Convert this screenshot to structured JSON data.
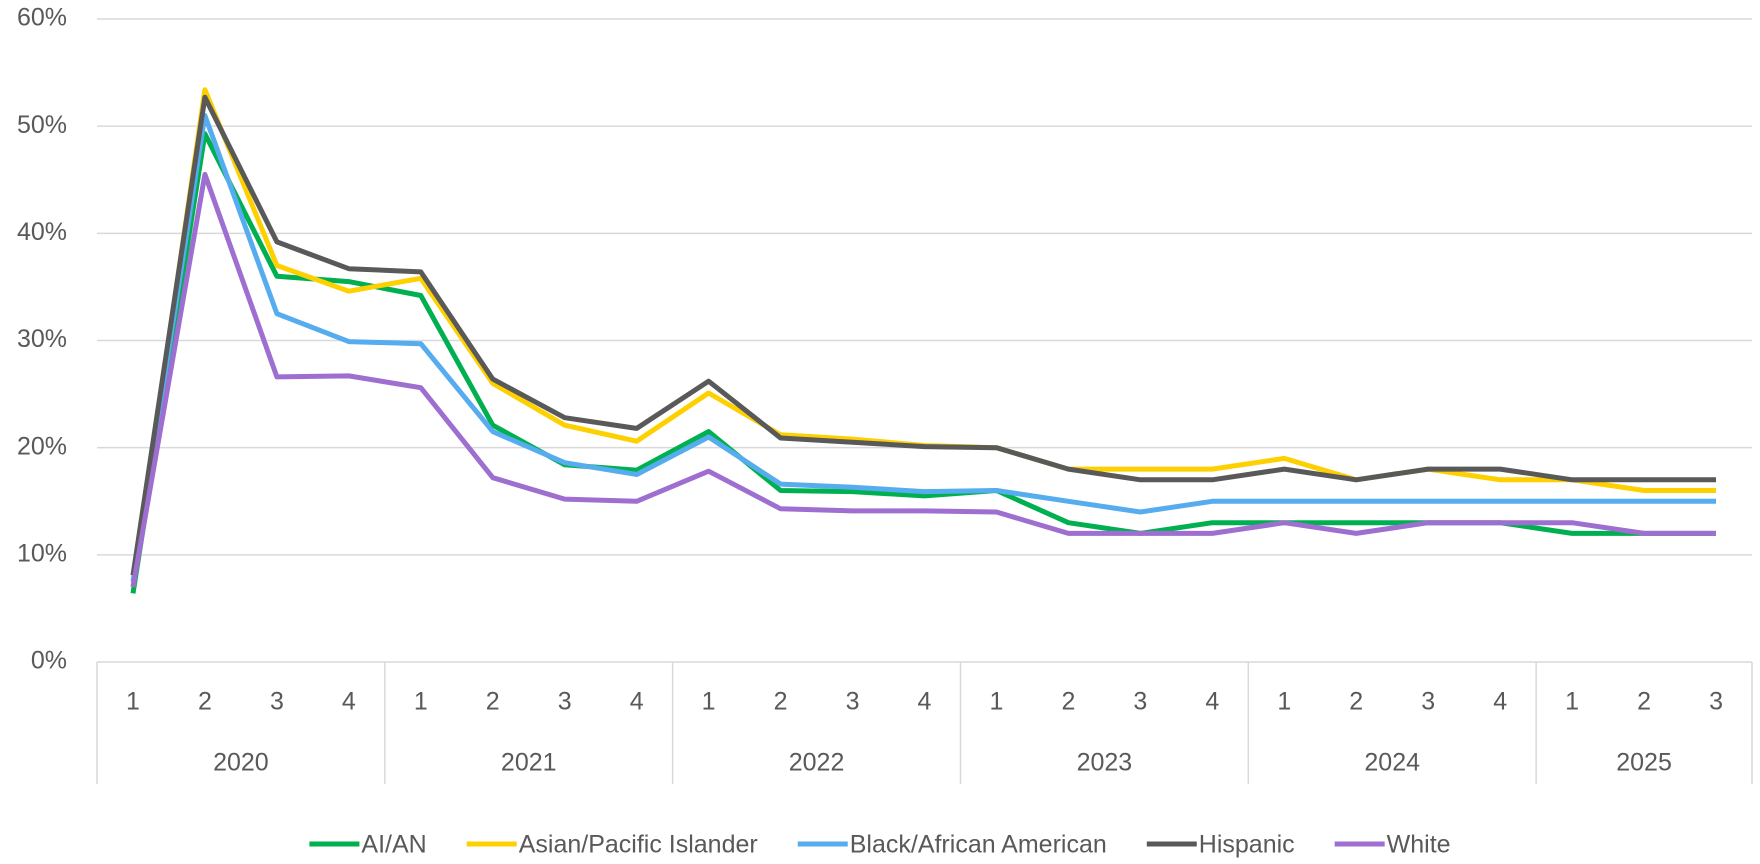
{
  "chart_data": {
    "type": "line",
    "groups": [
      {
        "name": "2020",
        "categories": [
          "1",
          "2",
          "3",
          "4"
        ]
      },
      {
        "name": "2021",
        "categories": [
          "1",
          "2",
          "3",
          "4"
        ]
      },
      {
        "name": "2022",
        "categories": [
          "1",
          "2",
          "3",
          "4"
        ]
      },
      {
        "name": "2023",
        "categories": [
          "1",
          "2",
          "3",
          "4"
        ]
      },
      {
        "name": "2024",
        "categories": [
          "1",
          "2",
          "3",
          "4"
        ]
      },
      {
        "name": "2025",
        "categories": [
          "1",
          "2",
          "3"
        ]
      }
    ],
    "series": [
      {
        "name": "AI/AN",
        "color": "#00b050",
        "values": [
          6.4,
          49.3,
          36,
          35.5,
          34.2,
          22.1,
          18.4,
          17.9,
          21.5,
          16,
          15.9,
          15.5,
          16,
          13,
          12,
          13,
          13,
          13,
          13,
          13,
          12,
          12,
          12
        ]
      },
      {
        "name": "Asian/Pacific Islander",
        "color": "#ffd000",
        "values": [
          7,
          53.4,
          37,
          34.6,
          35.8,
          26,
          22.1,
          20.6,
          25.1,
          21.2,
          20.8,
          20.2,
          20,
          18,
          18,
          18,
          19,
          17,
          18,
          17,
          17,
          16,
          16
        ]
      },
      {
        "name": "Black/African American",
        "color": "#55acee",
        "values": [
          7.5,
          51,
          32.5,
          29.9,
          29.7,
          21.5,
          18.6,
          17.5,
          21,
          16.6,
          16.3,
          15.9,
          16,
          15,
          14,
          15,
          15,
          15,
          15,
          15,
          15,
          15,
          15
        ]
      },
      {
        "name": "Hispanic",
        "color": "#595959",
        "values": [
          8.1,
          52.7,
          39.2,
          36.7,
          36.4,
          26.4,
          22.8,
          21.8,
          26.2,
          20.9,
          20.5,
          20.1,
          20,
          18,
          17,
          17,
          18,
          17,
          18,
          18,
          17,
          17,
          17
        ]
      },
      {
        "name": "White",
        "color": "#9e6fd0",
        "values": [
          7,
          45.5,
          26.6,
          26.7,
          25.6,
          17.2,
          15.2,
          15,
          17.8,
          14.3,
          14.1,
          14.1,
          14,
          12,
          12,
          12,
          13,
          12,
          13,
          13,
          13,
          12,
          12
        ]
      }
    ],
    "ylim": [
      0,
      60
    ],
    "yticks": [
      {
        "value": 0,
        "label": "0%"
      },
      {
        "value": 10,
        "label": "10%"
      },
      {
        "value": 20,
        "label": "20%"
      },
      {
        "value": 30,
        "label": "30%"
      },
      {
        "value": 40,
        "label": "40%"
      },
      {
        "value": 50,
        "label": "50%"
      },
      {
        "value": 60,
        "label": "60%"
      }
    ],
    "grid": true,
    "legend": "bottom"
  }
}
